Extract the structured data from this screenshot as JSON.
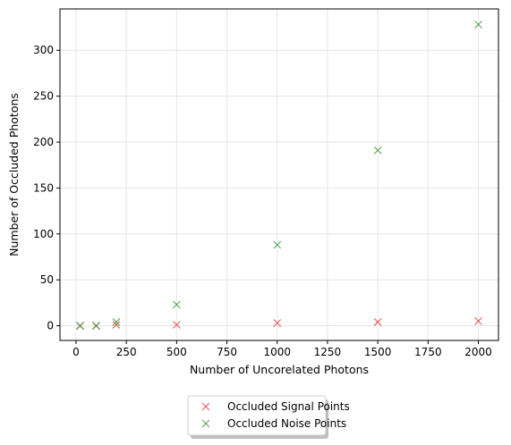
{
  "chart_data": {
    "type": "scatter",
    "title": "",
    "xlabel": "Number of Uncorelated Photons",
    "ylabel": "Number of Occluded Photons",
    "xlim": [
      -80,
      2100
    ],
    "ylim": [
      -16,
      345
    ],
    "xticks": [
      0,
      250,
      500,
      750,
      1000,
      1250,
      1500,
      1750,
      2000
    ],
    "yticks": [
      0,
      50,
      100,
      150,
      200,
      250,
      300
    ],
    "grid": true,
    "legend_position": "bottom-center",
    "series": [
      {
        "name": "Occluded Signal Points",
        "color": "#e8403f",
        "marker": "x",
        "x": [
          20,
          100,
          200,
          500,
          1000,
          1500,
          2000
        ],
        "y": [
          0,
          0,
          1,
          1,
          3,
          4,
          5
        ]
      },
      {
        "name": "Occluded Noise Points",
        "color": "#3a9a3a",
        "marker": "x",
        "x": [
          20,
          100,
          200,
          500,
          1000,
          1500,
          2000
        ],
        "y": [
          0,
          0,
          4,
          23,
          88,
          191,
          328
        ]
      }
    ]
  }
}
